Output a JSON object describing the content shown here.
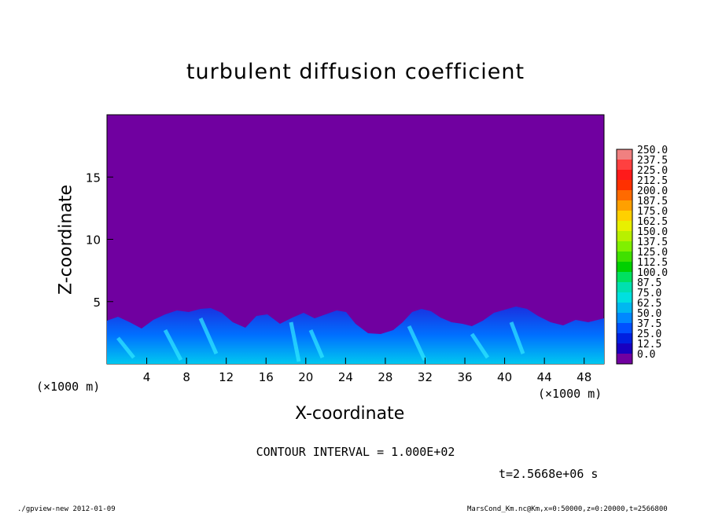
{
  "chart_data": {
    "type": "heatmap",
    "title": "turbulent diffusion coefficient",
    "xlabel": "X-coordinate",
    "ylabel": "Z-coordinate",
    "x_unit_left": "(×1000 m)",
    "x_unit_right": "(×1000 m)",
    "xlim": [
      0,
      50
    ],
    "ylim": [
      0,
      20
    ],
    "x_ticks": [
      "4",
      "8",
      "12",
      "16",
      "20",
      "24",
      "28",
      "32",
      "36",
      "40",
      "44",
      "48"
    ],
    "y_ticks": [
      "5",
      "10",
      "15"
    ],
    "colorbar_levels": [
      "250.0",
      "237.5",
      "225.0",
      "212.5",
      "200.0",
      "187.5",
      "175.0",
      "162.5",
      "150.0",
      "137.5",
      "125.0",
      "112.5",
      "100.0",
      "87.5",
      "75.0",
      "62.5",
      "50.0",
      "37.5",
      "25.0",
      "12.5",
      "0.0"
    ],
    "colorbar_colors": [
      "#f08080",
      "#ff4040",
      "#ff1a1a",
      "#ff3000",
      "#ff6a00",
      "#ffa000",
      "#ffd000",
      "#e8f000",
      "#b8f000",
      "#80f000",
      "#40e000",
      "#00d000",
      "#00e060",
      "#00e0b0",
      "#00e0e0",
      "#00b8f0",
      "#0088ff",
      "#0050ff",
      "#0020e0",
      "#1800c0",
      "#7000a0"
    ],
    "background_color": "#7000a0",
    "contour_interval": "CONTOUR INTERVAL = 1.000E+02",
    "time_label": "t=2.5668e+06 s"
  },
  "footer": {
    "left": "./gpview-new  2012-01-09",
    "right": "MarsCond_Km.nc@Km,x=0:50000,z=0:20000,t=2566800"
  }
}
